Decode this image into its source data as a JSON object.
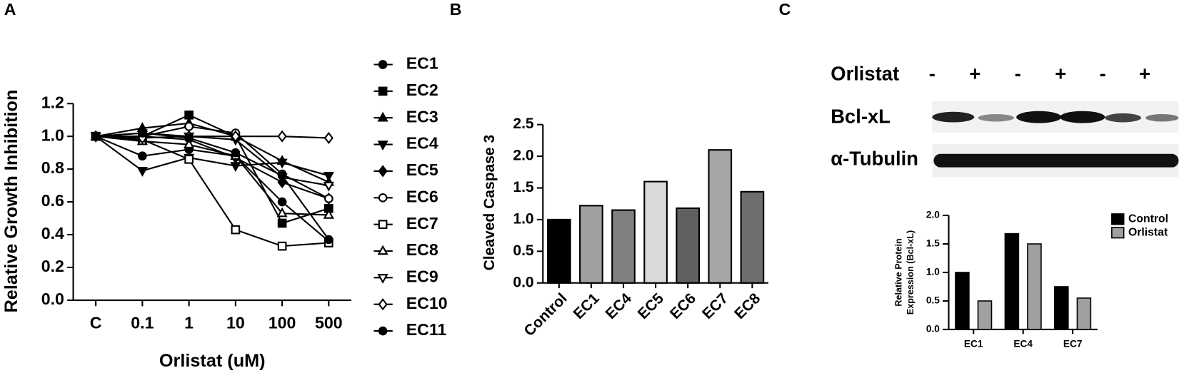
{
  "panel_labels": [
    "A",
    "B",
    "C"
  ],
  "blot": {
    "treatment": "Orlistat",
    "lanes": [
      "-",
      "+",
      "-",
      "+",
      "-",
      "+"
    ],
    "rows": [
      "Bcl-xL",
      "α-Tubulin"
    ]
  },
  "chart_data": [
    {
      "type": "line",
      "ylabel": "Relative Growth Inhibition",
      "xlabel": "Orlistat (uM)",
      "categories": [
        "C",
        "0.1",
        "1",
        "10",
        "100",
        "500"
      ],
      "ylim": [
        0,
        1.2
      ],
      "yticks": [
        {
          "value": 0,
          "label": "0.0"
        },
        0.2,
        0.4,
        0.6,
        0.8,
        {
          "value": 1,
          "label": "1.0"
        },
        1.2
      ],
      "series": [
        {
          "name": "EC1",
          "color": "#000000",
          "marker": "circle",
          "filled": true,
          "values": [
            1.0,
            0.88,
            0.92,
            0.88,
            0.6,
            0.36
          ]
        },
        {
          "name": "EC2",
          "color": "#000000",
          "marker": "square",
          "filled": true,
          "values": [
            1.0,
            1.0,
            1.13,
            1.0,
            0.47,
            0.56
          ]
        },
        {
          "name": "EC3",
          "color": "#000000",
          "marker": "triangle",
          "filled": true,
          "values": [
            1.0,
            1.05,
            1.08,
            1.0,
            0.85,
            0.72
          ]
        },
        {
          "name": "EC4",
          "color": "#000000",
          "marker": "triangle-down",
          "filled": true,
          "values": [
            1.0,
            0.79,
            0.87,
            0.82,
            0.84,
            0.76
          ]
        },
        {
          "name": "EC5",
          "color": "#000000",
          "marker": "diamond",
          "filled": true,
          "values": [
            1.0,
            1.0,
            0.98,
            0.87,
            0.72,
            0.62
          ]
        },
        {
          "name": "EC6",
          "color": "#000000",
          "marker": "circle",
          "filled": false,
          "values": [
            1.0,
            1.0,
            1.06,
            1.02,
            0.77,
            0.62
          ]
        },
        {
          "name": "EC7",
          "color": "#000000",
          "marker": "square",
          "filled": false,
          "values": [
            1.0,
            0.98,
            0.86,
            0.43,
            0.33,
            0.35
          ]
        },
        {
          "name": "EC8",
          "color": "#000000",
          "marker": "triangle",
          "filled": false,
          "values": [
            1.0,
            0.97,
            0.95,
            0.88,
            0.53,
            0.52
          ]
        },
        {
          "name": "EC9",
          "color": "#000000",
          "marker": "triangle-down",
          "filled": false,
          "values": [
            1.0,
            1.02,
            1.0,
            0.98,
            0.75,
            0.7
          ]
        },
        {
          "name": "EC10",
          "color": "#000000",
          "marker": "diamond",
          "filled": false,
          "values": [
            1.0,
            0.99,
            1.0,
            1.0,
            1.0,
            0.99
          ]
        },
        {
          "name": "EC11",
          "color": "#000000",
          "marker": "circle",
          "filled": true,
          "values": [
            1.0,
            1.02,
            0.99,
            0.9,
            0.76,
            0.37
          ]
        }
      ]
    },
    {
      "type": "bar",
      "ylabel": "Cleaved Caspase 3",
      "categories": [
        "Control",
        "EC1",
        "EC4",
        "EC5",
        "EC6",
        "EC7",
        "EC8"
      ],
      "values": [
        1.0,
        1.22,
        1.15,
        1.6,
        1.18,
        2.1,
        1.44
      ],
      "colors": [
        "#000000",
        "#a0a0a0",
        "#808080",
        "#d9d9d9",
        "#606060",
        "#a6a6a6",
        "#6e6e6e"
      ],
      "ylim": [
        0,
        2.5
      ],
      "yticks": [
        {
          "value": 0,
          "label": "0.0"
        },
        0.5,
        {
          "value": 1,
          "label": "1.0"
        },
        1.5,
        {
          "value": 2,
          "label": "2.0"
        },
        2.5
      ]
    },
    {
      "type": "grouped-bar",
      "ylabel": [
        "Relative Protein",
        "Expression (Bcl-xL)"
      ],
      "categories": [
        "EC1",
        "EC4",
        "EC7"
      ],
      "series": [
        {
          "name": "Control",
          "color": "#000000",
          "values": [
            1.0,
            1.68,
            0.75
          ]
        },
        {
          "name": "Orlistat",
          "color": "#a0a0a0",
          "values": [
            0.5,
            1.5,
            0.55
          ]
        }
      ],
      "ylim": [
        0,
        2
      ],
      "yticks": [
        {
          "value": 0,
          "label": "0.0"
        },
        0.5,
        {
          "value": 1,
          "label": "1.0"
        },
        1.5,
        {
          "value": 2,
          "label": "2.0"
        }
      ],
      "legend": "right"
    }
  ]
}
